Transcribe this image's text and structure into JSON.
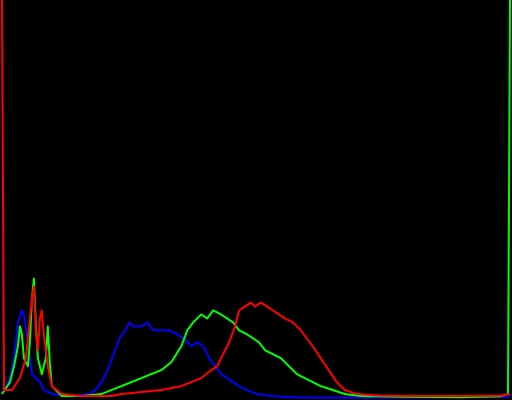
{
  "chart_data": {
    "type": "line",
    "title": "",
    "xlabel": "",
    "ylabel": "",
    "xlim": [
      0,
      255
    ],
    "ylim": [
      0,
      1
    ],
    "grid": false,
    "legend": "none",
    "background": "#000000",
    "series": [
      {
        "name": "blue",
        "color": "#0000ff",
        "points": [
          [
            0,
            0.02
          ],
          [
            2,
            0.03
          ],
          [
            4,
            0.05
          ],
          [
            6,
            0.1
          ],
          [
            8,
            0.19
          ],
          [
            10,
            0.22
          ],
          [
            11,
            0.21
          ],
          [
            13,
            0.14
          ],
          [
            15,
            0.06
          ],
          [
            17,
            0.05
          ],
          [
            19,
            0.04
          ],
          [
            21,
            0.02
          ],
          [
            25,
            0.01
          ],
          [
            35,
            0.005
          ],
          [
            44,
            0.01
          ],
          [
            47,
            0.02
          ],
          [
            50,
            0.04
          ],
          [
            53,
            0.07
          ],
          [
            56,
            0.11
          ],
          [
            59,
            0.15
          ],
          [
            62,
            0.17
          ],
          [
            64,
            0.19
          ],
          [
            66,
            0.18
          ],
          [
            70,
            0.18
          ],
          [
            73,
            0.19
          ],
          [
            76,
            0.17
          ],
          [
            80,
            0.17
          ],
          [
            84,
            0.17
          ],
          [
            88,
            0.16
          ],
          [
            91,
            0.15
          ],
          [
            95,
            0.13
          ],
          [
            98,
            0.14
          ],
          [
            101,
            0.13
          ],
          [
            104,
            0.1
          ],
          [
            107,
            0.08
          ],
          [
            110,
            0.06
          ],
          [
            113,
            0.05
          ],
          [
            116,
            0.04
          ],
          [
            119,
            0.03
          ],
          [
            123,
            0.02
          ],
          [
            128,
            0.01
          ],
          [
            135,
            0.005
          ],
          [
            145,
            0.002
          ],
          [
            160,
            0.001
          ],
          [
            190,
            0.001
          ],
          [
            230,
            0.002
          ],
          [
            254,
            0.003
          ],
          [
            255,
            0.01
          ]
        ]
      },
      {
        "name": "green",
        "color": "#00ff00",
        "points": [
          [
            0,
            0.01
          ],
          [
            4,
            0.04
          ],
          [
            6,
            0.08
          ],
          [
            8,
            0.13
          ],
          [
            9,
            0.18
          ],
          [
            10,
            0.16
          ],
          [
            11,
            0.1
          ],
          [
            13,
            0.08
          ],
          [
            14,
            0.14
          ],
          [
            15,
            0.25
          ],
          [
            16,
            0.3
          ],
          [
            17,
            0.18
          ],
          [
            18,
            0.1
          ],
          [
            20,
            0.06
          ],
          [
            22,
            0.1
          ],
          [
            23,
            0.18
          ],
          [
            24,
            0.09
          ],
          [
            25,
            0.03
          ],
          [
            30,
            0.005
          ],
          [
            40,
            0.005
          ],
          [
            50,
            0.01
          ],
          [
            55,
            0.02
          ],
          [
            60,
            0.03
          ],
          [
            65,
            0.04
          ],
          [
            70,
            0.05
          ],
          [
            75,
            0.06
          ],
          [
            80,
            0.07
          ],
          [
            85,
            0.09
          ],
          [
            90,
            0.13
          ],
          [
            93,
            0.17
          ],
          [
            96,
            0.19
          ],
          [
            100,
            0.21
          ],
          [
            103,
            0.2
          ],
          [
            106,
            0.22
          ],
          [
            110,
            0.21
          ],
          [
            113,
            0.2
          ],
          [
            116,
            0.19
          ],
          [
            119,
            0.17
          ],
          [
            123,
            0.16
          ],
          [
            126,
            0.15
          ],
          [
            129,
            0.14
          ],
          [
            132,
            0.12
          ],
          [
            136,
            0.11
          ],
          [
            140,
            0.1
          ],
          [
            144,
            0.08
          ],
          [
            148,
            0.06
          ],
          [
            152,
            0.05
          ],
          [
            156,
            0.04
          ],
          [
            160,
            0.03
          ],
          [
            166,
            0.02
          ],
          [
            172,
            0.01
          ],
          [
            180,
            0.005
          ],
          [
            200,
            0.003
          ],
          [
            230,
            0.002
          ],
          [
            250,
            0.004
          ],
          [
            254,
            0.01
          ],
          [
            255,
            1.0
          ]
        ]
      },
      {
        "name": "red",
        "color": "#ff0000",
        "points": [
          [
            0,
            1.0
          ],
          [
            1,
            0.02
          ],
          [
            5,
            0.02
          ],
          [
            9,
            0.05
          ],
          [
            12,
            0.1
          ],
          [
            14,
            0.2
          ],
          [
            15,
            0.25
          ],
          [
            16,
            0.28
          ],
          [
            17,
            0.16
          ],
          [
            18,
            0.12
          ],
          [
            19,
            0.2
          ],
          [
            20,
            0.22
          ],
          [
            21,
            0.16
          ],
          [
            22,
            0.12
          ],
          [
            23,
            0.08
          ],
          [
            25,
            0.03
          ],
          [
            30,
            0.01
          ],
          [
            40,
            0.005
          ],
          [
            55,
            0.005
          ],
          [
            60,
            0.01
          ],
          [
            70,
            0.015
          ],
          [
            80,
            0.02
          ],
          [
            90,
            0.03
          ],
          [
            100,
            0.05
          ],
          [
            105,
            0.07
          ],
          [
            108,
            0.08
          ],
          [
            111,
            0.11
          ],
          [
            114,
            0.14
          ],
          [
            117,
            0.18
          ],
          [
            119,
            0.22
          ],
          [
            122,
            0.23
          ],
          [
            125,
            0.24
          ],
          [
            127,
            0.23
          ],
          [
            130,
            0.24
          ],
          [
            133,
            0.23
          ],
          [
            136,
            0.22
          ],
          [
            139,
            0.21
          ],
          [
            142,
            0.2
          ],
          [
            146,
            0.19
          ],
          [
            150,
            0.17
          ],
          [
            153,
            0.15
          ],
          [
            156,
            0.13
          ],
          [
            160,
            0.1
          ],
          [
            164,
            0.07
          ],
          [
            168,
            0.04
          ],
          [
            172,
            0.02
          ],
          [
            178,
            0.01
          ],
          [
            190,
            0.006
          ],
          [
            210,
            0.005
          ],
          [
            230,
            0.005
          ],
          [
            250,
            0.006
          ],
          [
            255,
            0.01
          ]
        ]
      }
    ]
  }
}
